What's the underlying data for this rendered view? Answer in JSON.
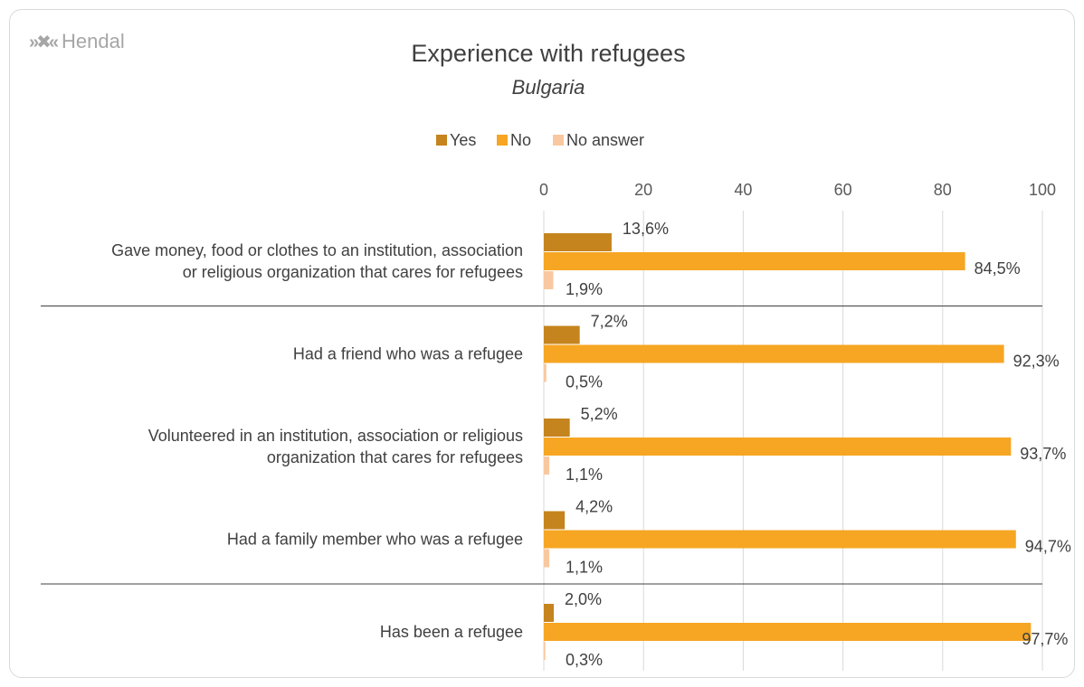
{
  "brand": {
    "name": "Hendal",
    "icon": "hendal-chevrons-icon"
  },
  "chart_data": {
    "type": "bar",
    "orientation": "horizontal",
    "title": "Experience with refugees",
    "subtitle": "Bulgaria",
    "legend_position": "top",
    "xlim": [
      0,
      100
    ],
    "xticks": [
      "0",
      "20",
      "40",
      "60",
      "80",
      "100"
    ],
    "grid": true,
    "categories": [
      [
        "Gave money, food or clothes to an institution, association",
        "or religious organization that cares for refugees"
      ],
      [
        "Had a friend who was a refugee"
      ],
      [
        "Volunteered in an institution, association or religious",
        "organization that cares for refugees"
      ],
      [
        "Had a family member who was a refugee"
      ],
      [
        "Has been a refugee"
      ]
    ],
    "series": [
      {
        "name": "Yes",
        "color": "#c5841e",
        "values": [
          13.6,
          7.2,
          5.2,
          4.2,
          2.0
        ],
        "labels": [
          "13,6%",
          "7,2%",
          "5,2%",
          "4,2%",
          "2,0%"
        ]
      },
      {
        "name": "No",
        "color": "#f6a623",
        "values": [
          84.5,
          92.3,
          93.7,
          94.7,
          97.7
        ],
        "labels": [
          "84,5%",
          "92,3%",
          "93,7%",
          "94,7%",
          "97,7%"
        ]
      },
      {
        "name": "No answer",
        "color": "#f9c8a0",
        "values": [
          1.9,
          0.5,
          1.1,
          1.1,
          0.3
        ],
        "labels": [
          "1,9%",
          "0,5%",
          "1,1%",
          "1,1%",
          "0,3%"
        ]
      }
    ],
    "separators_after_category": [
      0,
      3
    ]
  }
}
